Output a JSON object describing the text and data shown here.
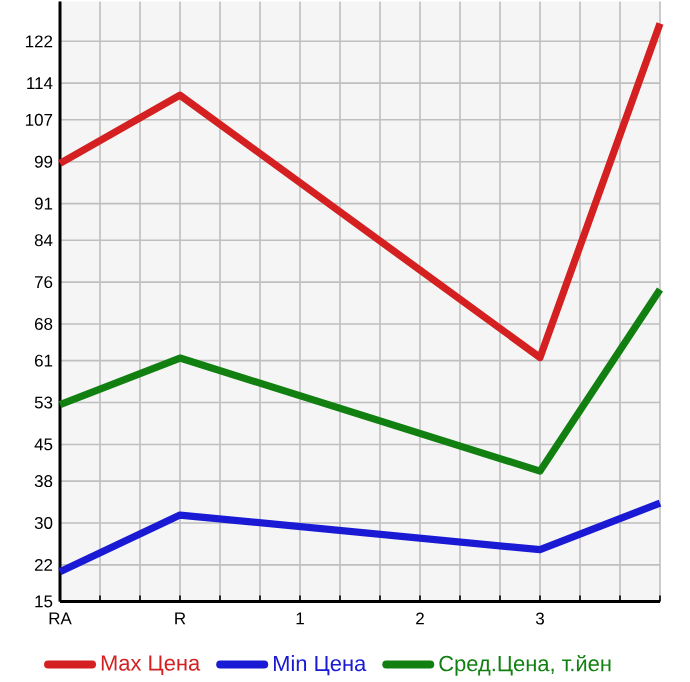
{
  "chart_data": {
    "type": "line",
    "categories": [
      "RA",
      "R",
      "1",
      "2",
      "3",
      null
    ],
    "series": [
      {
        "name": "Max Цена",
        "color": "#d42020",
        "values": [
          98.7,
          111.7,
          null,
          null,
          61.6,
          125.4
        ]
      },
      {
        "name": "Min Цена",
        "color": "#1a1ad4",
        "values": [
          20.7,
          31.5,
          null,
          null,
          24.9,
          33.8
        ]
      },
      {
        "name": "Сред.Цена, т.йен",
        "color": "#118011",
        "values": [
          52.6,
          61.5,
          null,
          null,
          39.9,
          74.6
        ]
      }
    ],
    "ylim": [
      15,
      129.6
    ],
    "yticks": [
      15,
      22,
      30,
      38,
      45,
      53,
      61,
      68,
      76,
      84,
      91,
      99,
      107,
      114,
      122
    ],
    "grid": true,
    "legend": "bottom"
  }
}
